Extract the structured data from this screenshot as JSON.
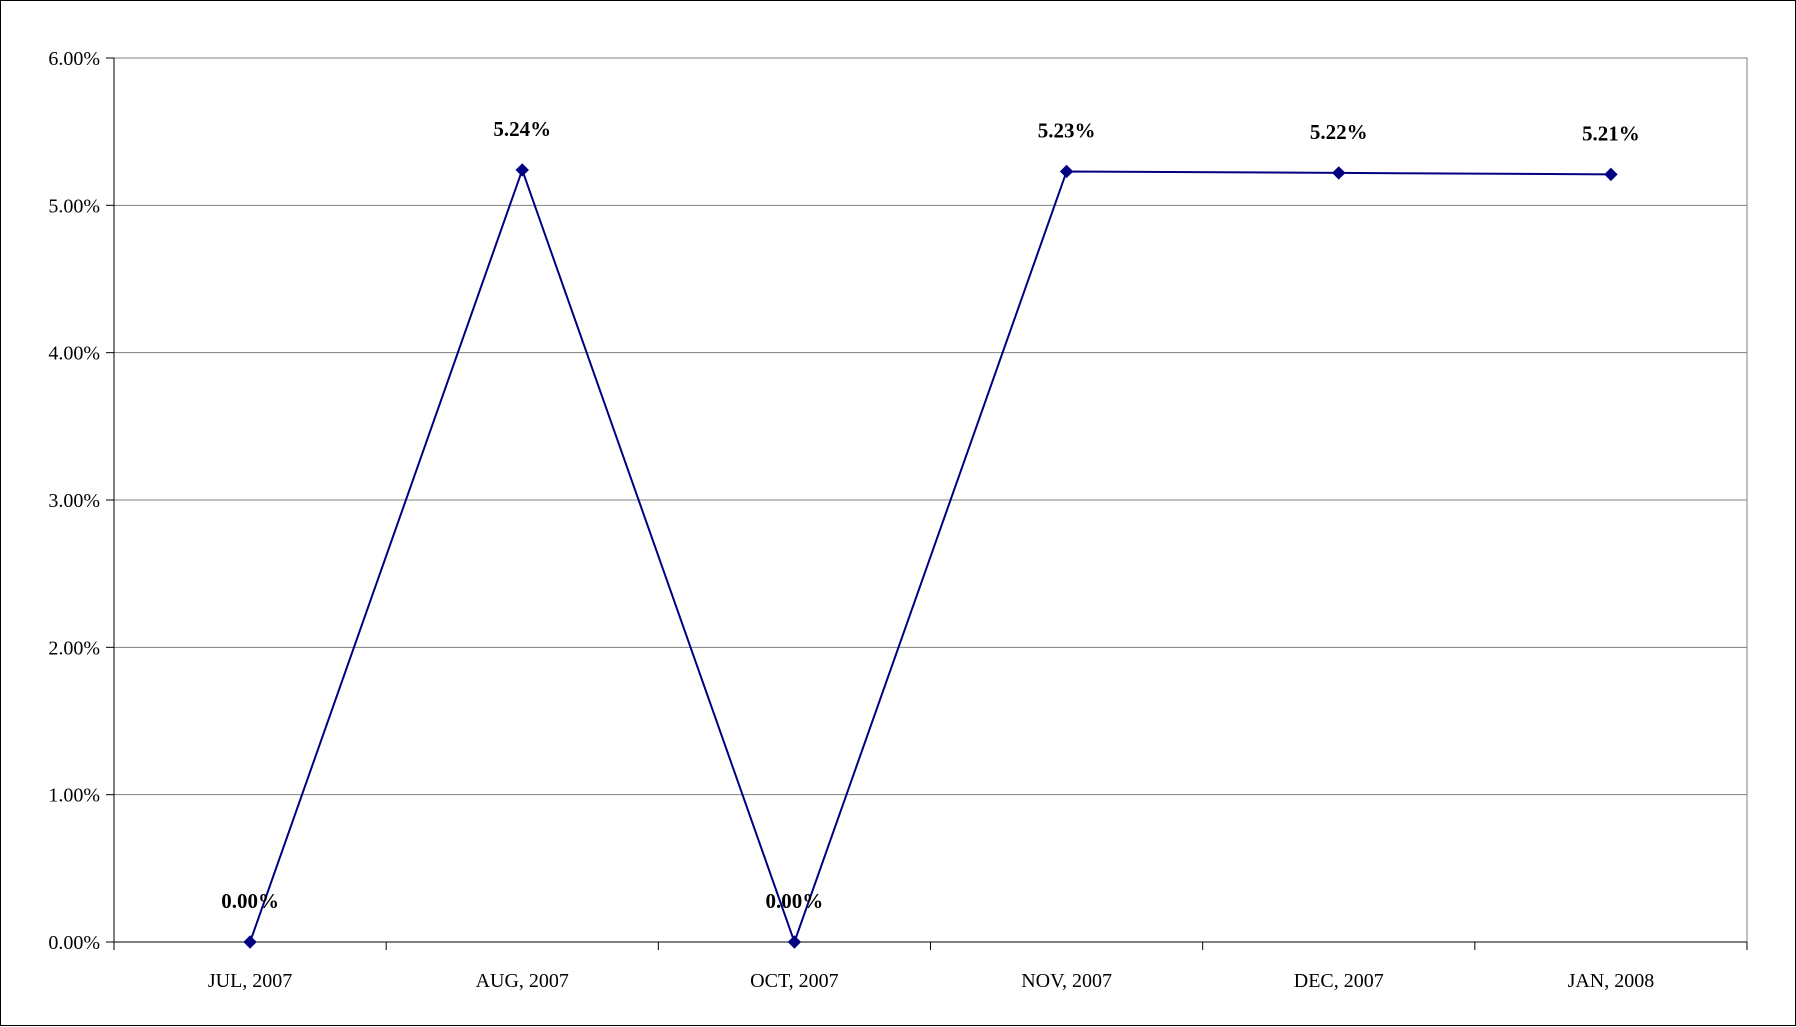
{
  "chart_data": {
    "type": "line",
    "title": "",
    "xlabel": "",
    "ylabel": "",
    "categories": [
      "JUL, 2007",
      "AUG, 2007",
      "OCT, 2007",
      "NOV, 2007",
      "DEC, 2007",
      "JAN, 2008"
    ],
    "series": [
      {
        "values": [
          0.0,
          5.24,
          0.0,
          5.23,
          5.22,
          5.21
        ],
        "data_labels": [
          "0.00%",
          "5.24%",
          "0.00%",
          "5.23%",
          "5.22%",
          "5.21%"
        ]
      }
    ],
    "ylim": [
      0,
      6
    ],
    "yticks": [
      0,
      1,
      2,
      3,
      4,
      5,
      6
    ],
    "ytick_labels": [
      "0.00%",
      "1.00%",
      "2.00%",
      "3.00%",
      "4.00%",
      "5.00%",
      "6.00%"
    ],
    "grid": true,
    "legend": "none",
    "colors": {
      "line": "#000080",
      "marker": "#000080",
      "grid": "#808080",
      "axis": "#000000"
    }
  }
}
